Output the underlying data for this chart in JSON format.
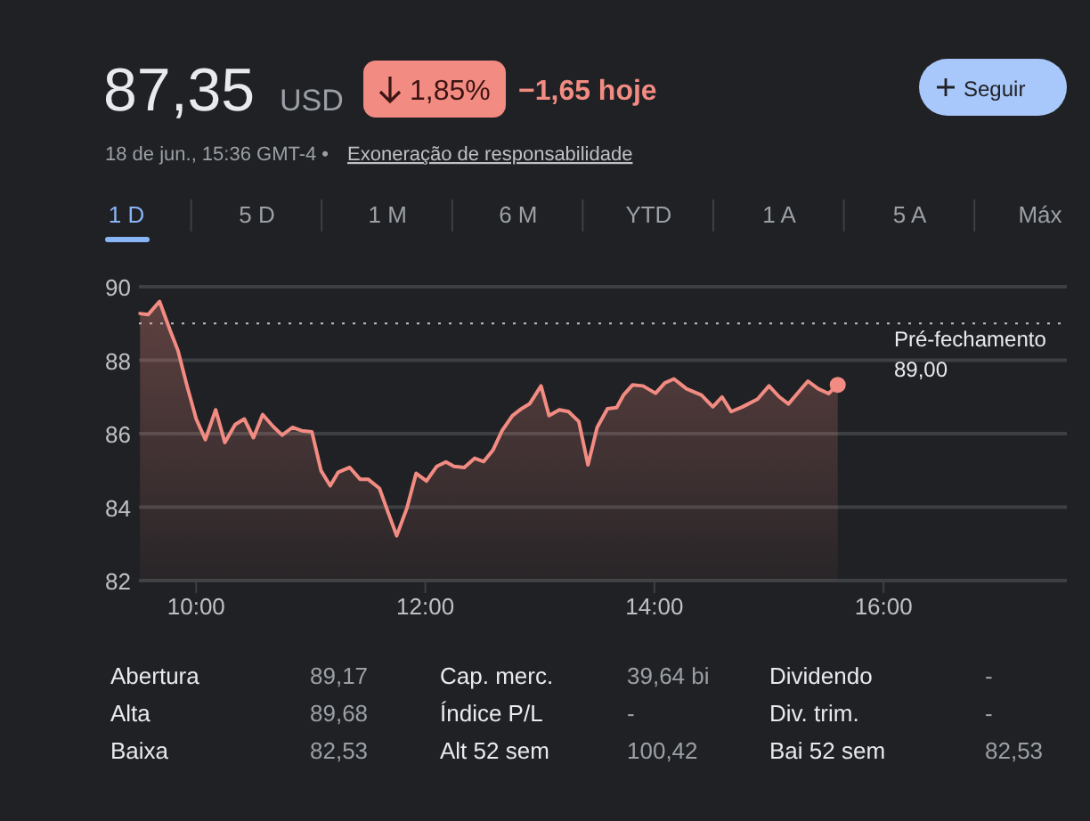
{
  "chart_data": {
    "type": "area",
    "x": [
      9.51,
      9.58,
      9.68,
      9.77,
      9.84,
      9.92,
      10.0,
      10.08,
      10.17,
      10.25,
      10.34,
      10.42,
      10.5,
      10.58,
      10.67,
      10.75,
      10.84,
      10.92,
      11.01,
      11.09,
      11.17,
      11.24,
      11.34,
      11.43,
      11.5,
      11.6,
      11.67,
      11.75,
      11.84,
      11.92,
      12.01,
      12.1,
      12.18,
      12.25,
      12.34,
      12.43,
      12.51,
      12.59,
      12.67,
      12.76,
      12.84,
      12.91,
      13.01,
      13.08,
      13.17,
      13.25,
      13.34,
      13.42,
      13.5,
      13.59,
      13.67,
      13.73,
      13.81,
      13.9,
      14.01,
      14.09,
      14.17,
      14.28,
      14.41,
      14.51,
      14.59,
      14.67,
      14.77,
      14.9,
      15.0,
      15.09,
      15.17,
      15.26,
      15.34,
      15.43,
      15.52,
      15.6
    ],
    "series": [
      {
        "color": "#f28b82",
        "values": [
          89.27,
          89.24,
          89.6,
          88.83,
          88.27,
          87.3,
          86.4,
          85.84,
          86.65,
          85.76,
          86.25,
          86.4,
          85.89,
          86.52,
          86.2,
          85.96,
          86.17,
          86.08,
          86.05,
          84.99,
          84.58,
          84.95,
          85.08,
          84.76,
          84.76,
          84.51,
          83.9,
          83.22,
          83.98,
          84.92,
          84.71,
          85.11,
          85.23,
          85.11,
          85.08,
          85.33,
          85.24,
          85.55,
          86.08,
          86.49,
          86.68,
          86.81,
          87.3,
          86.49,
          86.65,
          86.6,
          86.33,
          85.15,
          86.17,
          86.68,
          86.71,
          87.05,
          87.33,
          87.3,
          87.1,
          87.38,
          87.49,
          87.22,
          87.05,
          86.73,
          87.0,
          86.6,
          86.73,
          86.94,
          87.3,
          87.0,
          86.81,
          87.14,
          87.43,
          87.22,
          87.09,
          87.33
        ]
      },
      {
        "type": "scatter",
        "marker": "circle",
        "color": "#f28b82",
        "x": [
          15.6
        ],
        "values": [
          87.33
        ]
      }
    ],
    "xlim": [
      9.5,
      17.6
    ],
    "xticks": [
      {
        "value": 10,
        "label": "10:00"
      },
      {
        "value": 12,
        "label": "12:00"
      },
      {
        "value": 14,
        "label": "14:00"
      },
      {
        "value": 16,
        "label": "16:00"
      }
    ],
    "ylim": [
      82,
      90
    ],
    "yticks": [
      82,
      84,
      86,
      88,
      90
    ],
    "grid": "y",
    "marker": "none",
    "line_style": "solid",
    "ref_lines": [
      {
        "axis": "y",
        "value": 89,
        "label": "Pré-fechamento\n89,00",
        "color": "#bdc1c6",
        "line_style": "dotted"
      }
    ],
    "annotations": [
      "87,35",
      "USD",
      "1,85%",
      "−1,65 hoje",
      "Seguir",
      "18 de jun., 15:36 GMT-4 •",
      "Exoneração de responsabilidade",
      "1 D",
      "5 D",
      "1 M",
      "6 M",
      "YTD",
      "1 A",
      "5 A",
      "Máx",
      "Abertura",
      "89,17",
      "Cap. merc.",
      "39,64 bi",
      "Dividendo",
      "-",
      "Alta",
      "89,68",
      "Índice P/L",
      "-",
      "Div. trim.",
      "-",
      "Baixa",
      "82,53",
      "Alt 52 sem",
      "100,42",
      "Bai 52 sem",
      "82,53"
    ]
  }
}
